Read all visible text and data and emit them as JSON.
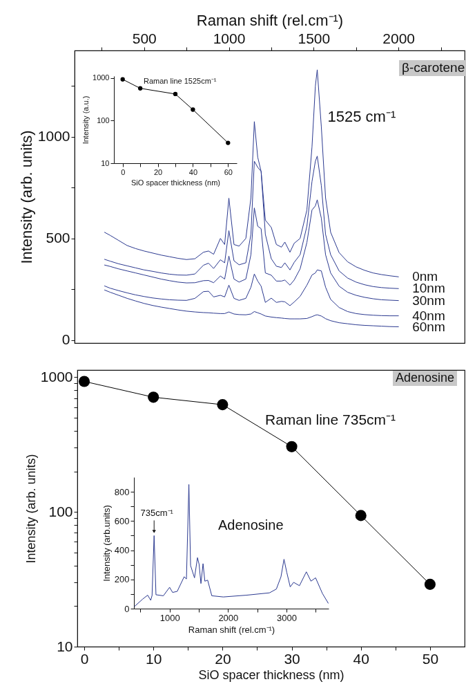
{
  "chart_data": [
    {
      "type": "line",
      "xlabel": "Raman shift (rel.cm⁻¹)",
      "ylabel": "Intensity (arb. units)",
      "x": [
        267,
        300,
        350,
        400,
        450,
        500,
        550,
        600,
        650,
        700,
        750,
        800,
        850,
        880,
        910,
        950,
        975,
        1000,
        1030,
        1060,
        1100,
        1130,
        1150,
        1170,
        1190,
        1215,
        1250,
        1280,
        1310,
        1330,
        1360,
        1385,
        1420,
        1460,
        1490,
        1510,
        1521,
        1545,
        1570,
        1600,
        1650,
        1700,
        1750,
        1800,
        1850,
        1900,
        1950,
        2000
      ],
      "series": [
        {
          "name": "0nm",
          "color": "#2b3990",
          "values": [
            530,
            515,
            490,
            465,
            450,
            438,
            428,
            418,
            410,
            402,
            396,
            400,
            432,
            438,
            422,
            500,
            470,
            698,
            470,
            462,
            500,
            700,
            1075,
            900,
            830,
            590,
            554,
            470,
            457,
            482,
            432,
            476,
            500,
            640,
            950,
            1250,
            1330,
            1050,
            700,
            530,
            430,
            385,
            360,
            343,
            330,
            322,
            316,
            311
          ]
        },
        {
          "name": "10nm",
          "color": "#2b3990",
          "values": [
            397,
            388,
            375,
            365,
            355,
            345,
            338,
            330,
            324,
            320,
            319,
            325,
            368,
            378,
            352,
            395,
            380,
            538,
            390,
            370,
            380,
            520,
            880,
            850,
            830,
            520,
            400,
            363,
            357,
            380,
            345,
            382,
            420,
            560,
            780,
            880,
            905,
            760,
            520,
            420,
            340,
            305,
            285,
            272,
            263,
            258,
            255,
            253
          ]
        },
        {
          "name": "30nm",
          "color": "#2b3990",
          "values": [
            369,
            362,
            350,
            340,
            330,
            320,
            310,
            300,
            292,
            285,
            281,
            282,
            292,
            293,
            282,
            315,
            300,
            413,
            300,
            285,
            300,
            420,
            650,
            560,
            548,
            330,
            319,
            290,
            290,
            295,
            270,
            295,
            350,
            480,
            640,
            660,
            690,
            600,
            420,
            330,
            265,
            235,
            220,
            210,
            203,
            198,
            196,
            194
          ]
        },
        {
          "name": "40nm",
          "color": "#2b3990",
          "values": [
            266,
            255,
            243,
            232,
            222,
            214,
            207,
            202,
            198,
            196,
            195,
            205,
            238,
            240,
            212,
            220,
            212,
            270,
            205,
            195,
            205,
            260,
            325,
            290,
            265,
            185,
            206,
            185,
            190,
            188,
            169,
            187,
            215,
            270,
            320,
            330,
            345,
            340,
            260,
            200,
            160,
            140,
            130,
            125,
            122,
            120,
            119,
            119
          ]
        },
        {
          "name": "60nm",
          "color": "#2b3990",
          "values": [
            246,
            235,
            220,
            205,
            192,
            180,
            170,
            162,
            155,
            148,
            142,
            138,
            135,
            134,
            132,
            130,
            130,
            138,
            128,
            125,
            124,
            128,
            140,
            134,
            128,
            118,
            113,
            110,
            108,
            106,
            104,
            104,
            104,
            106,
            115,
            122,
            124,
            118,
            105,
            95,
            85,
            80,
            75,
            72,
            70,
            68,
            66,
            65
          ]
        }
      ],
      "xlim": [
        90,
        2390
      ],
      "xticks": [
        {
          "value": 250,
          "label": null
        },
        500,
        {
          "value": 750,
          "label": null
        },
        1000,
        {
          "value": 1250,
          "label": null
        },
        1500,
        {
          "value": 1750,
          "label": null
        },
        2000,
        {
          "value": 2250,
          "label": null
        }
      ],
      "ylim": [
        -15,
        1425
      ],
      "yticks": [
        0,
        {
          "value": 250,
          "label": null
        },
        500,
        {
          "value": 750,
          "label": null
        },
        1000,
        {
          "value": 1250,
          "label": null
        }
      ],
      "annotations": [
        "β-carotene",
        {
          "text": "1525 cm⁻¹",
          "x": 1525,
          "y": 1330
        }
      ],
      "grid": false
    },
    {
      "type": "line",
      "xlabel": "SiO spacer thickness (nm)",
      "ylabel": "Intensity (a.u.)",
      "x": [
        0,
        10,
        30,
        40,
        60
      ],
      "values": [
        922,
        568,
        418,
        180,
        30
      ],
      "color": "#000000",
      "xlim": [
        -5,
        65
      ],
      "xticks": [
        0,
        {
          "value": 10,
          "label": null
        },
        20,
        {
          "value": 30,
          "label": null
        },
        40,
        {
          "value": 50,
          "label": null
        },
        60
      ],
      "ylim": [
        10,
        1100
      ],
      "yticks": [
        10,
        100,
        1000
      ],
      "log": "y",
      "annotations": [
        "Raman line 1525cm⁻¹"
      ],
      "marker": "circle",
      "grid": false
    },
    {
      "type": "line",
      "xlabel": "SiO spacer thickness (nm)",
      "ylabel": "Intensity (arb. units)",
      "x": [
        0,
        10,
        20,
        30,
        40,
        50
      ],
      "values": [
        930,
        710,
        625,
        305,
        94,
        29
      ],
      "color": "#000000",
      "xlim": [
        -1,
        55
      ],
      "xticks": [
        0,
        {
          "value": 5,
          "label": null
        },
        10,
        {
          "value": 15,
          "label": null
        },
        20,
        {
          "value": 25,
          "label": null
        },
        30,
        {
          "value": 35,
          "label": null
        },
        40,
        {
          "value": 45,
          "label": null
        },
        50
      ],
      "ylim": [
        10,
        1130
      ],
      "yticks": [
        10,
        {
          "value": 20,
          "label": null
        },
        {
          "value": 30,
          "label": null
        },
        {
          "value": 40,
          "label": null
        },
        {
          "value": 50,
          "label": null
        },
        {
          "value": 60,
          "label": null
        },
        {
          "value": 70,
          "label": null
        },
        {
          "value": 80,
          "label": null
        },
        {
          "value": 90,
          "label": null
        },
        100,
        {
          "value": 200,
          "label": null
        },
        {
          "value": 300,
          "label": null
        },
        {
          "value": 400,
          "label": null
        },
        {
          "value": 500,
          "label": null
        },
        {
          "value": 600,
          "label": null
        },
        {
          "value": 700,
          "label": null
        },
        {
          "value": 800,
          "label": null
        },
        {
          "value": 900,
          "label": null
        },
        1000
      ],
      "log": "y",
      "annotations": [
        "Adenosine",
        "Raman line 735cm⁻¹"
      ],
      "marker": "circle",
      "grid": false
    },
    {
      "type": "line",
      "xlabel": "Raman shift (rel.cm⁻¹)",
      "ylabel": "Intensity (arb.units)",
      "x": [
        400,
        539,
        625,
        677,
        700,
        735,
        767,
        893,
        1000,
        1051,
        1130,
        1249,
        1288,
        1330,
        1359,
        1426,
        1477,
        1505,
        1536,
        1572,
        1603,
        1651,
        1722,
        1919,
        2314,
        2708,
        2826,
        2905,
        2957,
        3004,
        3063,
        3122,
        3221,
        3339,
        3418,
        3497,
        3615,
        3714
      ],
      "values": [
        15,
        65,
        92,
        57,
        90,
        500,
        95,
        88,
        146,
        111,
        118,
        218,
        203,
        850,
        295,
        211,
        349,
        303,
        172,
        308,
        188,
        195,
        88,
        80,
        92,
        108,
        134,
        218,
        338,
        249,
        149,
        180,
        157,
        252,
        188,
        211,
        103,
        37
      ],
      "color": "#2b3990",
      "xlim": [
        390,
        3720
      ],
      "xticks": [
        {
          "value": 500,
          "label": null
        },
        1000,
        {
          "value": 1500,
          "label": null
        },
        2000,
        {
          "value": 2500,
          "label": null
        },
        3000,
        {
          "value": 3500,
          "label": null
        }
      ],
      "ylim": [
        0,
        900
      ],
      "yticks": [
        0,
        {
          "value": 100,
          "label": null
        },
        200,
        {
          "value": 300,
          "label": null
        },
        400,
        {
          "value": 500,
          "label": null
        },
        600,
        {
          "value": 700,
          "label": null
        },
        800
      ],
      "annotations": [
        {
          "text": "735cm⁻¹",
          "x": 735,
          "y": 500
        },
        "Adenosine"
      ],
      "grid": false
    }
  ]
}
